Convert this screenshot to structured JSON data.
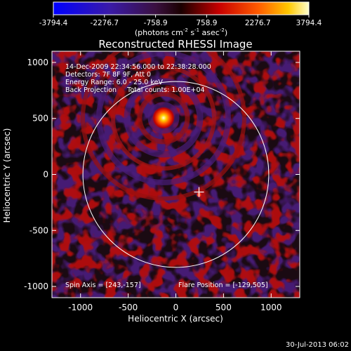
{
  "colorbar": {
    "ticks": [
      "-3794.4",
      "-2276.7",
      "-758.9",
      "758.9",
      "2276.7",
      "3794.4"
    ],
    "min": -3794.4,
    "max": 3794.4,
    "units_prefix": "(photons cm",
    "units_exp1": "-2",
    "units_mid": " s",
    "units_exp2": "-1",
    "units_mid2": " asec",
    "units_exp3": "-2",
    "units_suffix": ")"
  },
  "chart_data": {
    "type": "heatmap",
    "title": "Reconstructed RHESSI Image",
    "xlabel": "Heliocentric X (arcsec)",
    "ylabel": "Heliocentric Y (arcsec)",
    "xlim": [
      -1300,
      1300
    ],
    "ylim": [
      -1100,
      1100
    ],
    "x_ticks": [
      "-1000",
      "-500",
      "0",
      "500",
      "1000"
    ],
    "y_ticks": [
      "1000",
      "500",
      "0",
      "-500",
      "-1000"
    ],
    "x_tick_values": [
      -1000,
      -500,
      0,
      500,
      1000
    ],
    "y_tick_values": [
      1000,
      500,
      0,
      -500,
      -1000
    ],
    "info_lines": [
      "14-Dec-2009 22:34:56.000 to 22:38:28.000",
      "Detectors: 7F 8F 9F, Att 0",
      "Energy Range: 6.0 - 25.0 keV",
      "Back Projection     Total counts: 1.00E+04"
    ],
    "spin_axis": "Spin Axis = [243,-157]",
    "flare_position": "Flare Position = [-129,505]",
    "solar_disk_radius": 975,
    "source": {
      "x": -129,
      "y": 505
    },
    "spin_axis_marker": {
      "x": 243,
      "y": -157
    },
    "footer_timestamp": "30-Jul-2013 06:02"
  }
}
